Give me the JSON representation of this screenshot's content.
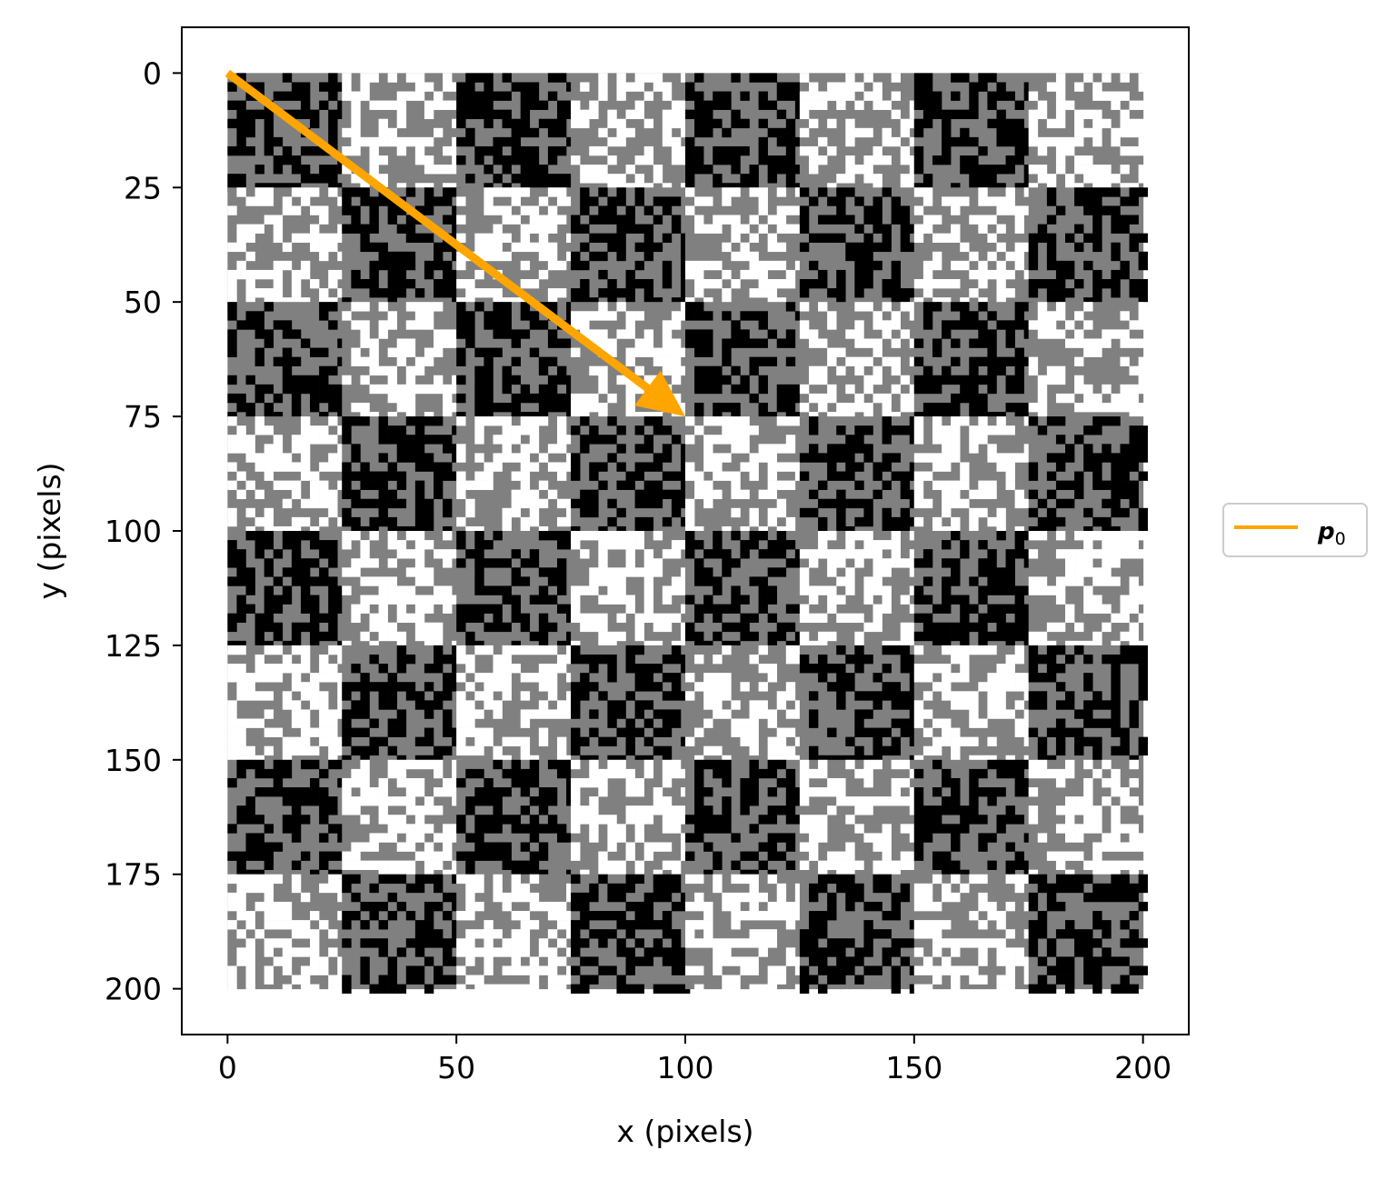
{
  "chart_data": {
    "type": "heatmap",
    "description_kind": "image",
    "image": {
      "width": 200,
      "height": 200,
      "checker_cell_size": 25,
      "checker_rows": 8,
      "checker_cols": 8,
      "top_left_cell": "dark",
      "colors": {
        "black": "#000000",
        "gray": "#808080",
        "white": "#ffffff"
      },
      "texture": "random noise within each checker cell"
    },
    "x_axis": {
      "label": "x (pixels)",
      "ticks": [
        0,
        50,
        100,
        150,
        200
      ],
      "tick_labels": [
        "0",
        "50",
        "100",
        "150",
        "200"
      ],
      "lim": [
        -10,
        210
      ]
    },
    "y_axis": {
      "label": "y (pixels)",
      "ticks": [
        0,
        25,
        50,
        75,
        100,
        125,
        150,
        175,
        200
      ],
      "tick_labels": [
        "0",
        "25",
        "50",
        "75",
        "100",
        "125",
        "150",
        "175",
        "200"
      ],
      "lim": [
        210,
        -10
      ],
      "inverted": true
    },
    "arrows": [
      {
        "name": "p0",
        "start": [
          0,
          0
        ],
        "end": [
          100,
          75
        ],
        "color": "#ffa500"
      }
    ],
    "legend": {
      "placement": "center-right-outside",
      "entries": [
        {
          "label_main": "p",
          "label_sub": "0",
          "color": "#ffa500"
        }
      ]
    },
    "grid": false
  }
}
